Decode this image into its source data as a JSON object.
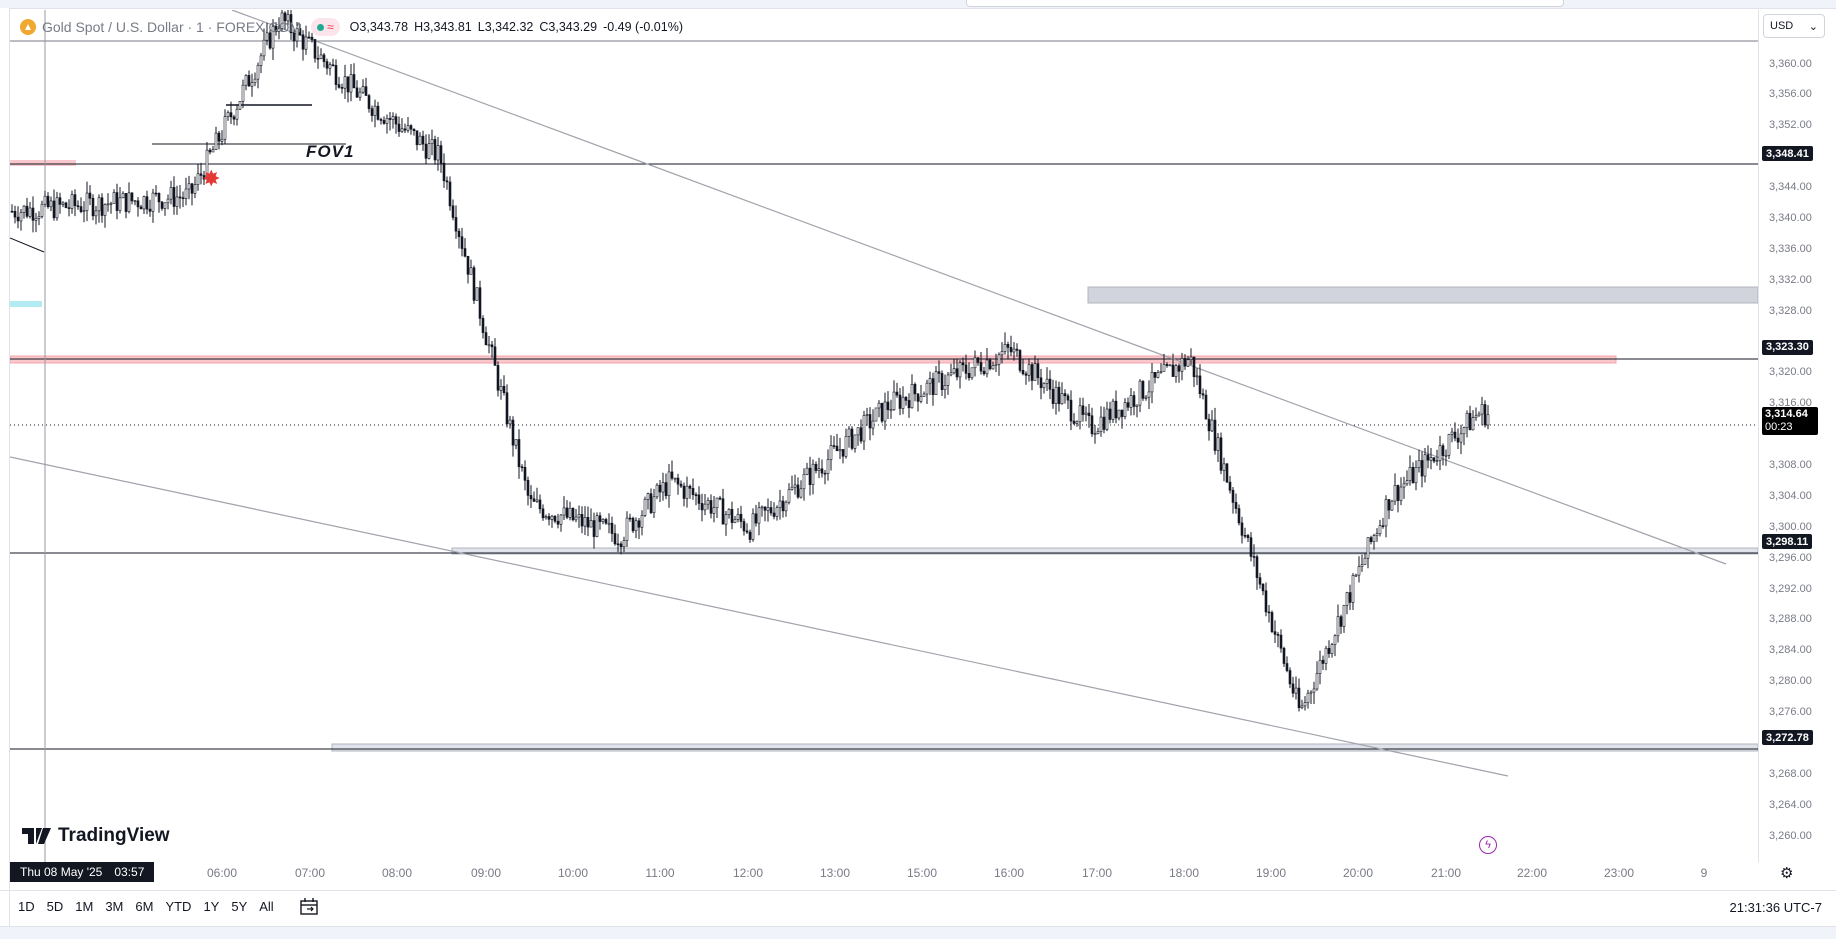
{
  "legend": {
    "symbol_title": "Gold Spot / U.S. Dollar · 1 · FOREX.COM",
    "icon": "gold-coin-icon",
    "ohlc": [
      {
        "k": "O",
        "v": "3,343.78"
      },
      {
        "k": "H",
        "v": "3,343.81"
      },
      {
        "k": "L",
        "v": "3,342.32"
      },
      {
        "k": "C",
        "v": "3,343.29"
      }
    ],
    "change": "-0.49 (-0.01%)"
  },
  "currency_button": {
    "label": "USD"
  },
  "price_axis": {
    "ticks": [
      "3,360.00",
      "3,356.00",
      "3,352.00",
      "3,344.00",
      "3,340.00",
      "3,336.00",
      "3,332.00",
      "3,328.00",
      "3,320.00",
      "3,316.00",
      "3,308.00",
      "3,304.00",
      "3,300.00",
      "3,296.00",
      "3,292.00",
      "3,288.00",
      "3,284.00",
      "3,280.00",
      "3,276.00",
      "3,268.00",
      "3,264.00",
      "3,260.00"
    ],
    "tags": [
      "3,348.41",
      "3,323.30",
      "3,298.11",
      "3,272.78"
    ],
    "last_price": "3,314.64",
    "countdown": "00:23"
  },
  "time_axis": {
    "labels": [
      "06:00",
      "07:00",
      "08:00",
      "09:00",
      "10:00",
      "11:00",
      "12:00",
      "13:00",
      "15:00",
      "16:00",
      "17:00",
      "18:00",
      "19:00",
      "20:00",
      "21:00",
      "22:00",
      "23:00",
      "9"
    ],
    "cursor_date": "Thu 08 May '25",
    "cursor_time": "03:57"
  },
  "annotations": {
    "fov_label": "FOV1"
  },
  "branding": {
    "logo_text": "TradingView"
  },
  "bottom_toolbar": {
    "ranges": [
      "1D",
      "5D",
      "1M",
      "3M",
      "6M",
      "YTD",
      "1Y",
      "5Y",
      "All"
    ],
    "clock": "21:31:36 UTC-7"
  },
  "chart_data": {
    "type": "candlestick",
    "symbol": "Gold Spot / U.S. Dollar",
    "interval": "1",
    "ylim": [
      3258,
      3369
    ],
    "x": [
      "05:00",
      "06:00",
      "07:00",
      "08:00",
      "09:00",
      "10:00",
      "11:00",
      "12:00",
      "13:00",
      "15:00",
      "16:00",
      "17:00",
      "18:00",
      "19:00",
      "20:00",
      "21:00",
      "21:30"
    ],
    "price_path": [
      3341,
      3343,
      3366,
      3356,
      3348,
      3303,
      3299,
      3306,
      3300,
      3316,
      3323,
      3313,
      3322,
      3276,
      3304,
      3315,
      3314.64
    ],
    "horizontal_levels": [
      3348.41,
      3323.3,
      3298.11,
      3272.78
    ],
    "current_price": 3314.64
  },
  "colors": {
    "candle": "#131722",
    "red_zone": "#f8c8cc",
    "gray_zone": "#d1d4dc",
    "cyan_zone": "#b2ebf2",
    "accent": "#2962ff"
  }
}
